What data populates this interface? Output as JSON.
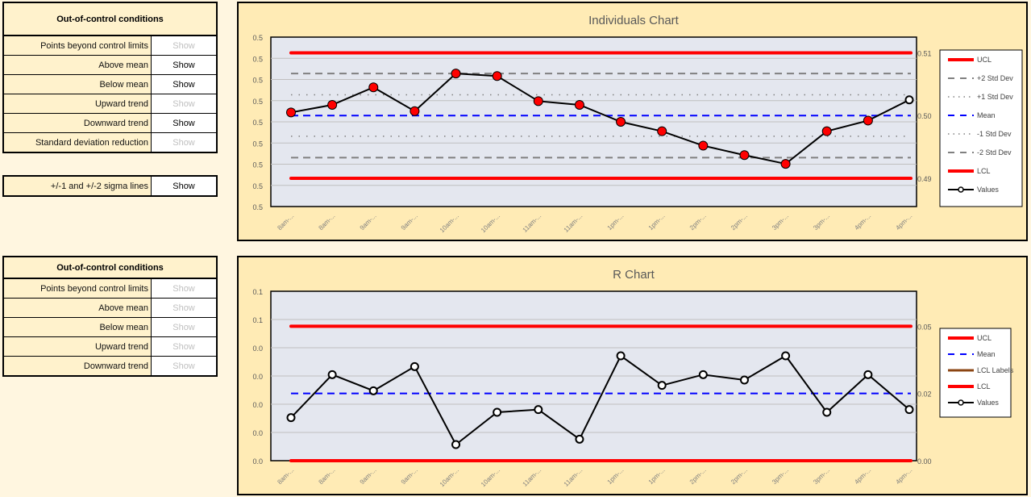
{
  "panel1": {
    "title": "Out-of-control conditions",
    "rows": [
      {
        "label": "Points beyond control limits",
        "button": "Show",
        "state": "off"
      },
      {
        "label": "Above mean",
        "button": "Show",
        "state": "on"
      },
      {
        "label": "Below mean",
        "button": "Show",
        "state": "on"
      },
      {
        "label": "Upward trend",
        "button": "Show",
        "state": "off"
      },
      {
        "label": "Downward trend",
        "button": "Show",
        "state": "on"
      },
      {
        "label": "Standard deviation reduction",
        "button": "Show",
        "state": "off"
      }
    ]
  },
  "sigma": {
    "label": "+/-1 and +/-2 sigma lines",
    "button": "Show",
    "state": "on"
  },
  "panel2": {
    "title": "Out-of-control conditions",
    "rows": [
      {
        "label": "Points beyond control limits",
        "button": "Show",
        "state": "off"
      },
      {
        "label": "Above mean",
        "button": "Show",
        "state": "off"
      },
      {
        "label": "Below mean",
        "button": "Show",
        "state": "off"
      },
      {
        "label": "Upward trend",
        "button": "Show",
        "state": "off"
      },
      {
        "label": "Downward trend",
        "button": "Show",
        "state": "off"
      }
    ]
  },
  "colors": {
    "ucl": "#FF0000",
    "mean": "#0000FF",
    "sigma": "#808080",
    "values": "#000000",
    "lcl_labels": "#8B4513",
    "plot_bg": "#E4E7EF",
    "chart_bg": "#FFEBB5"
  },
  "chart_data": [
    {
      "type": "line",
      "title": "Individuals Chart",
      "categories": [
        "8am-...",
        "8am-...",
        "9am-...",
        "9am-...",
        "10am-...",
        "10am-...",
        "11am-...",
        "11am-...",
        "1pm-...",
        "1pm-...",
        "2pm-...",
        "2pm-...",
        "3pm-...",
        "3pm-...",
        "4pm-...",
        "4pm-..."
      ],
      "y_tick_labels": [
        "0.5",
        "0.5",
        "0.5",
        "0.5",
        "0.5",
        "0.5",
        "0.5",
        "0.5",
        "0.5"
      ],
      "ylim": [
        0.4855,
        0.5125
      ],
      "grid": true,
      "legend_position": "right",
      "series": [
        {
          "name": "UCL",
          "value": 0.51,
          "label": "0.51",
          "style": "solid-thick",
          "color": "#FF0000"
        },
        {
          "name": "+2 Std Dev",
          "value": 0.5067,
          "style": "dash",
          "color": "#808080"
        },
        {
          "name": "+1 Std Dev",
          "value": 0.5033,
          "style": "dot",
          "color": "#808080"
        },
        {
          "name": "Mean",
          "value": 0.5,
          "label": "0.50",
          "style": "dash",
          "color": "#0000FF"
        },
        {
          "name": "-1 Std Dev",
          "value": 0.4967,
          "style": "dot",
          "color": "#808080"
        },
        {
          "name": "-2 Std Dev",
          "value": 0.4933,
          "style": "dash",
          "color": "#808080"
        },
        {
          "name": "LCL",
          "value": 0.49,
          "label": "0.49",
          "style": "solid-thick",
          "color": "#FF0000"
        },
        {
          "name": "Values",
          "values": [
            0.5005,
            0.5017,
            0.5045,
            0.5007,
            0.5067,
            0.5063,
            0.5023,
            0.5017,
            0.499,
            0.4975,
            0.4952,
            0.4937,
            0.4923,
            0.4975,
            0.4992,
            0.5025
          ],
          "highlighted": [
            true,
            true,
            true,
            true,
            true,
            true,
            true,
            true,
            true,
            true,
            true,
            true,
            true,
            true,
            true,
            false
          ]
        }
      ]
    },
    {
      "type": "line",
      "title": "R Chart",
      "categories": [
        "8am-...",
        "8am-...",
        "9am-...",
        "9am-...",
        "10am-...",
        "10am-...",
        "11am-...",
        "11am-...",
        "1pm-...",
        "1pm-...",
        "2pm-...",
        "2pm-...",
        "3pm-...",
        "3pm-...",
        "4pm-...",
        "4pm-..."
      ],
      "y_tick_labels": [
        "0.0",
        "0.0",
        "0.0",
        "0.0",
        "0.0",
        "0.1",
        "0.1"
      ],
      "ylim": [
        0,
        0.063
      ],
      "grid": true,
      "legend_position": "right",
      "series": [
        {
          "name": "UCL",
          "value": 0.05,
          "label": "0.05",
          "color": "#FF0000"
        },
        {
          "name": "Mean",
          "value": 0.025,
          "label": "0.02",
          "color": "#0000FF"
        },
        {
          "name": "LCL Labels",
          "color": "#8B4513"
        },
        {
          "name": "LCL",
          "value": 0.0,
          "label": "0.00",
          "color": "#FF0000"
        },
        {
          "name": "Values",
          "values": [
            0.016,
            0.032,
            0.026,
            0.035,
            0.006,
            0.018,
            0.019,
            0.008,
            0.039,
            0.028,
            0.032,
            0.03,
            0.039,
            0.018,
            0.032,
            0.019
          ]
        }
      ]
    }
  ]
}
